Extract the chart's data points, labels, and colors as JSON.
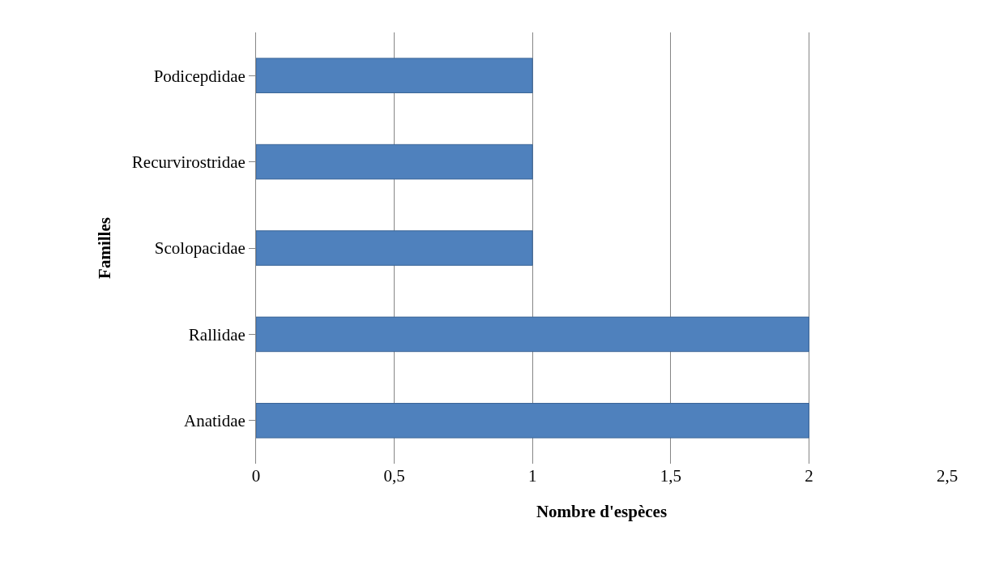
{
  "chart_data": {
    "type": "bar",
    "orientation": "horizontal",
    "xlabel": "Nombre d'espèces",
    "ylabel": "Familles",
    "categories": [
      "Podicepdidae",
      "Recurvirostridae",
      "Scolopacidae",
      "Rallidae",
      "Anatidae"
    ],
    "values": [
      1,
      1,
      1,
      2,
      2
    ],
    "color": "#4f81bd",
    "xlim": [
      0,
      2.5
    ],
    "xticks": [
      0,
      {
        "value": 0.5,
        "label": "0,5"
      },
      1,
      {
        "value": 1.5,
        "label": "1,5"
      },
      2,
      {
        "value": 2.5,
        "label": "2,5"
      }
    ],
    "grid": "x"
  }
}
